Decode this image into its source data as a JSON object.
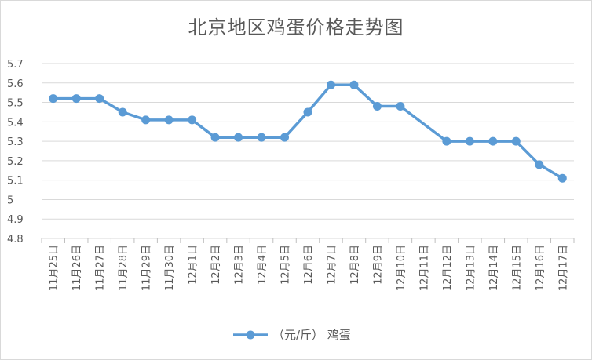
{
  "chart_data": {
    "type": "line",
    "title": "北京地区鸡蛋价格走势图",
    "xlabel": "",
    "ylabel": "",
    "ylim": [
      4.8,
      5.7
    ],
    "yticks": [
      4.8,
      4.9,
      5,
      5.1,
      5.2,
      5.3,
      5.4,
      5.5,
      5.6,
      5.7
    ],
    "grid": "horizontal",
    "legend_position": "bottom",
    "categories": [
      "11月25日",
      "11月26日",
      "11月27日",
      "11月28日",
      "11月29日",
      "11月30日",
      "12月1日",
      "12月2日",
      "12月3日",
      "12月4日",
      "12月5日",
      "12月6日",
      "12月7日",
      "12月8日",
      "12月9日",
      "12月10日",
      "12月11日",
      "12月12日",
      "12月13日",
      "12月14日",
      "12月15日",
      "12月16日",
      "12月17日"
    ],
    "series": [
      {
        "name": "（元/斤） 鸡蛋",
        "color": "#5b9bd5",
        "values": [
          5.52,
          5.52,
          5.52,
          5.45,
          5.41,
          5.41,
          5.41,
          5.32,
          5.32,
          5.32,
          5.32,
          5.45,
          5.59,
          5.59,
          5.48,
          5.48,
          null,
          5.3,
          5.3,
          5.3,
          5.3,
          5.18,
          5.11
        ]
      }
    ]
  }
}
